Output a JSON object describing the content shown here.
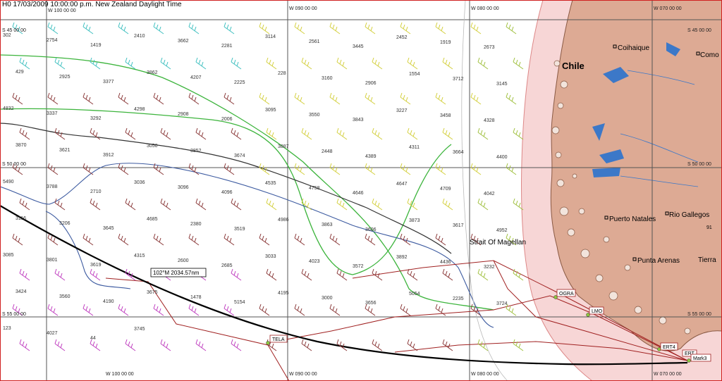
{
  "header": {
    "text": "H0 17/03/2009 10:00:00 p.m. New Zealand Daylight Time"
  },
  "grid": {
    "lat": [
      "S 45 00 00",
      "S 50 00 00",
      "S 55 00 00"
    ],
    "lon_top": [
      "W 100 00 00",
      "W 090 00 00",
      "W 080 00 00",
      "W 070 00 00"
    ],
    "lon_bottom": [
      "W 100 00 00",
      "W 090 00 00",
      "W 080 00 00",
      "W 070 00 00"
    ],
    "lat_right": [
      "S 45 00 00",
      "S 50 00 00",
      "S 55 00 00"
    ]
  },
  "places": {
    "country": "Chile",
    "cities": [
      "Coihaique",
      "Como",
      "Puerto Natales",
      "Rio Gallegos",
      "Punta Arenas",
      "Tierra"
    ],
    "strait": "Strait Of Magellan",
    "right_num": "91"
  },
  "route": {
    "label": "102°M 2034.57nm"
  },
  "marks": [
    "TELA",
    "OGRA",
    "LMO",
    "ERT4",
    "ERT",
    "Mark3"
  ],
  "numbers": [
    "302",
    "2754",
    "1419",
    "2410",
    "3662",
    "2281",
    "3114",
    "2561",
    "3445",
    "2452",
    "1919",
    "2673",
    "429",
    "2925",
    "3377",
    "3862",
    "4207",
    "2225",
    "228",
    "3160",
    "2906",
    "1554",
    "3712",
    "3145",
    "4832",
    "3337",
    "3292",
    "4298",
    "2908",
    "2006",
    "3095",
    "3550",
    "3843",
    "3227",
    "3458",
    "4328",
    "3870",
    "3621",
    "3912",
    "3050",
    "3852",
    "3674",
    "3887",
    "2448",
    "4389",
    "4311",
    "3664",
    "4400",
    "5490",
    "3788",
    "2710",
    "3036",
    "3096",
    "4096",
    "4535",
    "4758",
    "4646",
    "4647",
    "4709",
    "4042",
    "3116",
    "3206",
    "3645",
    "4685",
    "2380",
    "3519",
    "4986",
    "3863",
    "3606",
    "3873",
    "3617",
    "4952",
    "3085",
    "3801",
    "3619",
    "4315",
    "2600",
    "2685",
    "3033",
    "4023",
    "3572",
    "3892",
    "4436",
    "3232",
    "3424",
    "3560",
    "4190",
    "3675",
    "1478",
    "5154",
    "4195",
    "3000",
    "3656",
    "5054",
    "2235",
    "3724",
    "123",
    "4027",
    "44",
    "3745"
  ],
  "colors": {
    "track": "#000000",
    "green_iso": "#3cb43c",
    "blue_iso": "#3c5aa0",
    "dark_iso": "#333333",
    "land": "#ddaa94",
    "zone": "#f7d6d6",
    "water": "#3c78c8",
    "red_track": "#a02020"
  },
  "icons": [
    "wind-barb-icon",
    "town-marker-icon",
    "mark-icon"
  ]
}
